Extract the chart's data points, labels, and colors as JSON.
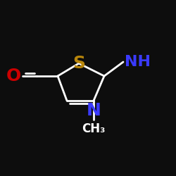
{
  "background_color": "#0d0d0d",
  "atom_colors": {
    "S": "#b8860b",
    "NH": "#3a3aff",
    "N": "#3a3aff",
    "O": "#cc0000",
    "C": "#ffffff"
  },
  "font_sizes": {
    "S": 18,
    "NH": 16,
    "N": 18,
    "O": 18,
    "CH3": 12
  },
  "lw": 2.0,
  "figsize": [
    2.5,
    2.5
  ],
  "dpi": 100
}
